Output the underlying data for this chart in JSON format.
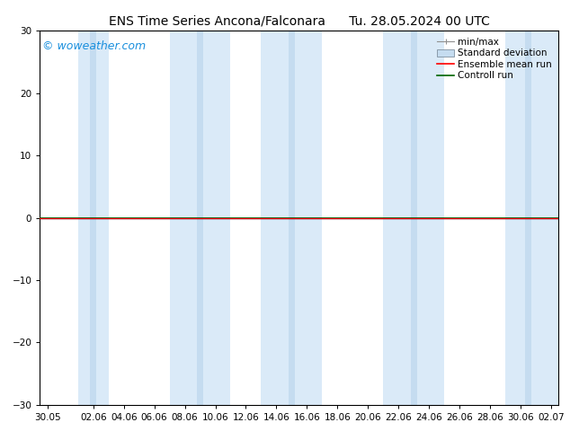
{
  "title": "ENS Time Series Ancona/Falconara      Tu. 28.05.2024 00 UTC",
  "watermark": "© woweather.com",
  "watermark_color": "#1a8fdd",
  "ylim": [
    -30,
    30
  ],
  "yticks": [
    -30,
    -20,
    -10,
    0,
    10,
    20,
    30
  ],
  "xlabel_ticks": [
    "30.05",
    "02.06",
    "04.06",
    "06.06",
    "08.06",
    "10.06",
    "12.06",
    "14.06",
    "16.06",
    "18.06",
    "20.06",
    "22.06",
    "24.06",
    "26.06",
    "28.06",
    "30.06",
    "02.07"
  ],
  "xtick_positions": [
    0,
    3,
    5,
    7,
    9,
    11,
    13,
    15,
    17,
    19,
    21,
    23,
    25,
    27,
    29,
    31,
    33
  ],
  "xlim": [
    -0.5,
    33.5
  ],
  "bg_color": "#ffffff",
  "band_color": "#daeaf8",
  "band_color_dark": "#c5dcf0",
  "band_ranges": [
    [
      2.0,
      4.0
    ],
    [
      8.0,
      12.0
    ],
    [
      14.0,
      18.0
    ],
    [
      22.0,
      26.0
    ],
    [
      30.0,
      33.5
    ]
  ],
  "dark_band_ranges": [
    [
      2.8,
      3.2
    ],
    [
      9.8,
      10.2
    ],
    [
      15.8,
      16.2
    ],
    [
      23.8,
      24.2
    ],
    [
      31.3,
      31.7
    ]
  ],
  "control_run_color": "#006400",
  "ensemble_mean_color": "#ff0000",
  "zero_line_color": "#000000",
  "title_fontsize": 10,
  "tick_fontsize": 7.5,
  "watermark_fontsize": 9,
  "legend_fontsize": 7.5
}
